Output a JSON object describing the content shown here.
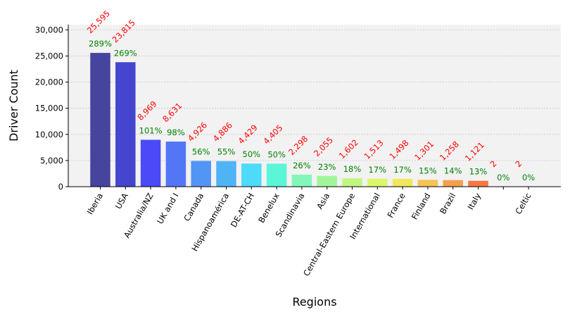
{
  "chart_data": {
    "type": "bar",
    "title": "",
    "xlabel": "Regions",
    "ylabel": "Driver Count",
    "ylim": [
      0,
      31000
    ],
    "yticks": [
      0,
      5000,
      10000,
      15000,
      20000,
      25000,
      30000
    ],
    "ytick_labels": [
      "0",
      "5,000",
      "10,000",
      "15,000",
      "20,000",
      "25,000",
      "30,000"
    ],
    "grid": "y-dotted",
    "legend": "none",
    "plot_background": "#f2f2f2",
    "categories": [
      "Iberia",
      "USA",
      "Australia/NZ",
      "UK and I",
      "Canada",
      "Hispanoamérica",
      "DE-AT-CH",
      "Benelux",
      "Scandinavia",
      "Asia",
      "Central-Eastern Europe",
      "International",
      "France",
      "Finland",
      "Brazil",
      "Italy",
      "",
      "Celtic"
    ],
    "values": [
      25595,
      23815,
      8969,
      8631,
      4926,
      4886,
      4429,
      4405,
      2298,
      2055,
      1602,
      1513,
      1498,
      1301,
      1258,
      1121,
      2,
      2
    ],
    "value_labels": [
      "25,595",
      "23,815",
      "8,969",
      "8,631",
      "4,926",
      "4,886",
      "4,429",
      "4,405",
      "2,298",
      "2,055",
      "1,602",
      "1,513",
      "1,498",
      "1,301",
      "1,258",
      "1,121",
      "2",
      "2"
    ],
    "percent_labels": [
      "289%",
      "269%",
      "101%",
      "98%",
      "56%",
      "55%",
      "50%",
      "50%",
      "26%",
      "23%",
      "18%",
      "17%",
      "17%",
      "15%",
      "14%",
      "13%",
      "0%",
      "0%"
    ],
    "bar_colors": [
      "#3b3b9a",
      "#3b3bcc",
      "#4040f5",
      "#4a6ff7",
      "#4a8ff5",
      "#46b0f5",
      "#44d8fa",
      "#52f5d6",
      "#7cf5b6",
      "#9cf593",
      "#bff57a",
      "#d9f560",
      "#f0e652",
      "#f5c147",
      "#f59a42",
      "#f57038",
      "#ff4a2a",
      "#ff2a1a"
    ],
    "value_label_color": "#ff0000",
    "percent_label_color": "#008000"
  }
}
